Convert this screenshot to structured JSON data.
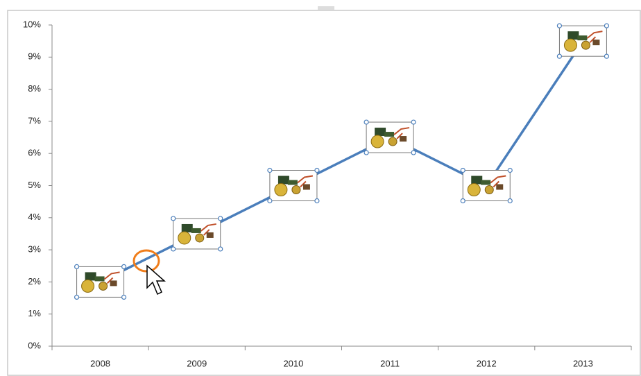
{
  "chart_data": {
    "type": "line",
    "categories": [
      "2008",
      "2009",
      "2010",
      "2011",
      "2012",
      "2013"
    ],
    "values": [
      2,
      3.5,
      5,
      6.5,
      5,
      9.5
    ],
    "color": "#4a7ebb",
    "ylim": [
      0,
      10
    ],
    "yticks": [
      {
        "value": 0,
        "label": "0%"
      },
      {
        "value": 1,
        "label": "1%"
      },
      {
        "value": 2,
        "label": "2%"
      },
      {
        "value": 3,
        "label": "3%"
      },
      {
        "value": 4,
        "label": "4%"
      },
      {
        "value": 5,
        "label": "5%"
      },
      {
        "value": 6,
        "label": "6%"
      },
      {
        "value": 7,
        "label": "7%"
      },
      {
        "value": 8,
        "label": "8%"
      },
      {
        "value": 9,
        "label": "9%"
      },
      {
        "value": 10,
        "label": "10%"
      }
    ],
    "grid": false
  }
}
